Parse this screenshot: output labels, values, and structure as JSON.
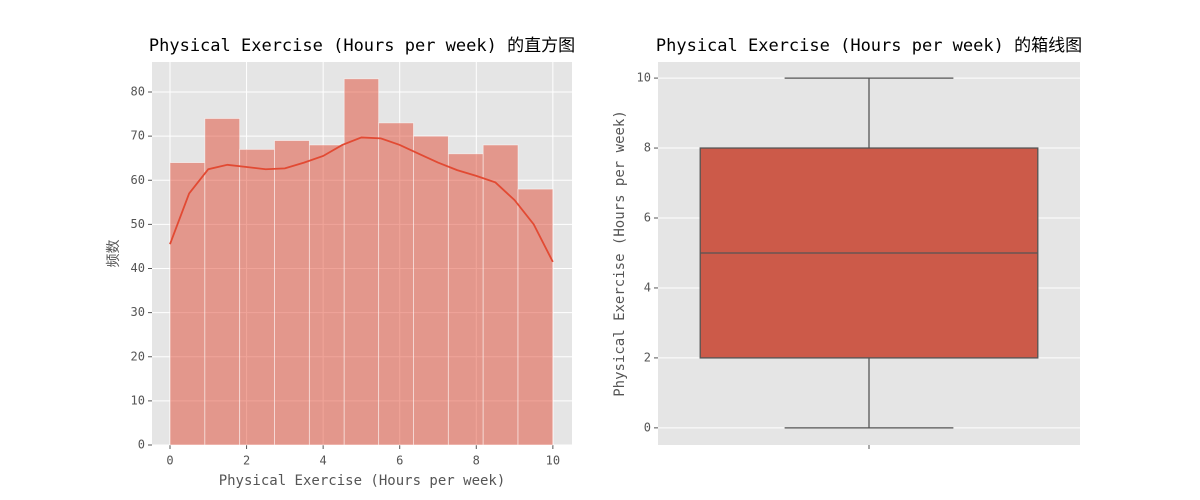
{
  "chart_data": [
    {
      "type": "histogram",
      "title": "Physical Exercise (Hours per week) 的直方图",
      "xlabel": "Physical Exercise (Hours per week)",
      "ylabel": "频数",
      "bins": [
        0,
        0.91,
        1.82,
        2.73,
        3.64,
        4.55,
        5.45,
        6.36,
        7.27,
        8.18,
        9.09,
        10
      ],
      "values": [
        64,
        74,
        67,
        69,
        68,
        83,
        73,
        70,
        66,
        68,
        58
      ],
      "color": "#E24A33",
      "kde": {
        "x": [
          0,
          0.5,
          1,
          1.5,
          2,
          2.5,
          3,
          3.5,
          4,
          4.5,
          5,
          5.5,
          6,
          6.5,
          7,
          7.5,
          8,
          8.5,
          9,
          9.5,
          10
        ],
        "values": [
          45.5,
          57,
          62.5,
          63.5,
          63,
          62.5,
          62.7,
          64,
          65.5,
          68,
          69.7,
          69.5,
          68,
          66,
          64,
          62.3,
          61,
          59.5,
          55.5,
          50,
          41.5
        ],
        "color": "#E24A33"
      },
      "xlim": [
        -0.47,
        10.5
      ],
      "ylim": [
        0,
        86.8
      ],
      "xticks": [
        0,
        2,
        4,
        6,
        8,
        10
      ],
      "yticks": [
        0,
        10,
        20,
        30,
        40,
        50,
        60,
        70,
        80
      ],
      "grid": true
    },
    {
      "type": "box",
      "title": "Physical Exercise (Hours per week) 的箱线图",
      "ylabel": "Physical Exercise (Hours per week)",
      "categories": [
        null
      ],
      "min": [
        0
      ],
      "q1": [
        2
      ],
      "median": [
        5
      ],
      "q3": [
        8
      ],
      "max": [
        10
      ],
      "color": "#CC5A49",
      "ylim": [
        -0.49,
        10.46
      ],
      "yticks": [
        0,
        2,
        4,
        6,
        8,
        10
      ],
      "grid": true
    }
  ]
}
